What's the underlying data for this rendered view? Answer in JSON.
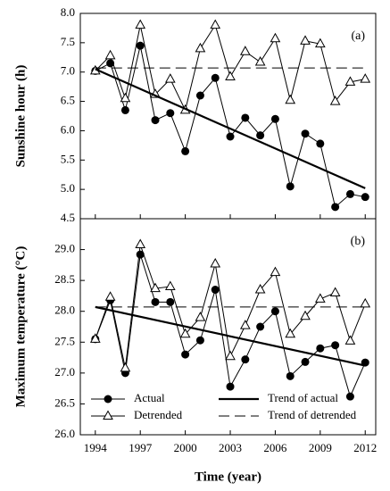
{
  "chart_data": [
    {
      "type": "line",
      "annotation": "(a)",
      "ylabel": "Sunshine hour (h)",
      "x": [
        1994,
        1995,
        1996,
        1997,
        1998,
        1999,
        2000,
        2001,
        2002,
        2003,
        2004,
        2005,
        2006,
        2007,
        2008,
        2009,
        2010,
        2011,
        2012
      ],
      "xlim": [
        1993,
        2012.7
      ],
      "xticks": [
        1994,
        1997,
        2000,
        2003,
        2006,
        2009,
        2012
      ],
      "ylim": [
        4.5,
        8.0
      ],
      "yticks": [
        4.5,
        {
          "value": 5,
          "label": "5.0"
        },
        5.5,
        {
          "value": 6,
          "label": "6.0"
        },
        6.5,
        {
          "value": 7,
          "label": "7.0"
        },
        7.5,
        {
          "value": 8,
          "label": "8.0"
        }
      ],
      "series": [
        {
          "color": "#000000",
          "marker": "circle",
          "values": [
            7.02,
            7.15,
            6.35,
            7.45,
            6.18,
            6.3,
            5.65,
            6.6,
            6.9,
            5.9,
            6.22,
            5.92,
            6.2,
            5.05,
            5.95,
            5.78,
            4.7,
            4.92,
            4.87
          ]
        },
        {
          "color": "#000000",
          "marker": "triangle",
          "values": [
            7.02,
            7.28,
            6.55,
            7.8,
            6.62,
            6.88,
            6.35,
            7.4,
            7.8,
            6.92,
            7.35,
            7.17,
            7.57,
            6.52,
            7.53,
            7.48,
            6.5,
            6.83,
            6.88
          ]
        },
        {
          "color": "#000000",
          "dash": false,
          "x": [
            1994,
            2012
          ],
          "values": [
            7.05,
            5.02
          ]
        },
        {
          "color": "#000000",
          "dash": true,
          "x": [
            1994,
            2012
          ],
          "values": [
            7.07,
            7.07
          ]
        }
      ]
    },
    {
      "type": "line",
      "annotation": "(b)",
      "ylabel": "Maximum temperature (°C)",
      "xlabel": "Time (year)",
      "x": [
        1994,
        1995,
        1996,
        1997,
        1998,
        1999,
        2000,
        2001,
        2002,
        2003,
        2004,
        2005,
        2006,
        2007,
        2008,
        2009,
        2010,
        2011,
        2012
      ],
      "xlim": [
        1993,
        2012.7
      ],
      "xticks": [
        1994,
        1997,
        2000,
        2003,
        2006,
        2009,
        2012
      ],
      "ylim": [
        26.0,
        29.5
      ],
      "yticks": [
        {
          "value": 26,
          "label": "26.0"
        },
        26.5,
        {
          "value": 27,
          "label": "27.0"
        },
        27.5,
        {
          "value": 28,
          "label": "28.0"
        },
        28.5,
        {
          "value": 29,
          "label": "29.0"
        }
      ],
      "series": [
        {
          "name": "Actual",
          "color": "#000000",
          "marker": "circle",
          "values": [
            27.55,
            28.18,
            27.0,
            28.92,
            28.15,
            28.15,
            27.3,
            27.53,
            28.35,
            26.78,
            27.22,
            27.75,
            28.0,
            26.95,
            27.18,
            27.4,
            27.45,
            26.62,
            27.17
          ]
        },
        {
          "name": "Detrended",
          "color": "#000000",
          "marker": "triangle",
          "values": [
            27.55,
            28.23,
            27.08,
            29.08,
            28.37,
            28.4,
            27.63,
            27.9,
            28.77,
            27.27,
            27.77,
            28.35,
            28.63,
            27.63,
            27.92,
            28.2,
            28.3,
            27.52,
            28.12
          ]
        },
        {
          "name": "Trend of actual",
          "color": "#000000",
          "dash": false,
          "x": [
            1994,
            2012
          ],
          "values": [
            28.07,
            27.12
          ]
        },
        {
          "name": "Trend of detrended",
          "color": "#000000",
          "dash": true,
          "x": [
            1994,
            2012
          ],
          "values": [
            28.07,
            28.07
          ]
        }
      ]
    }
  ]
}
